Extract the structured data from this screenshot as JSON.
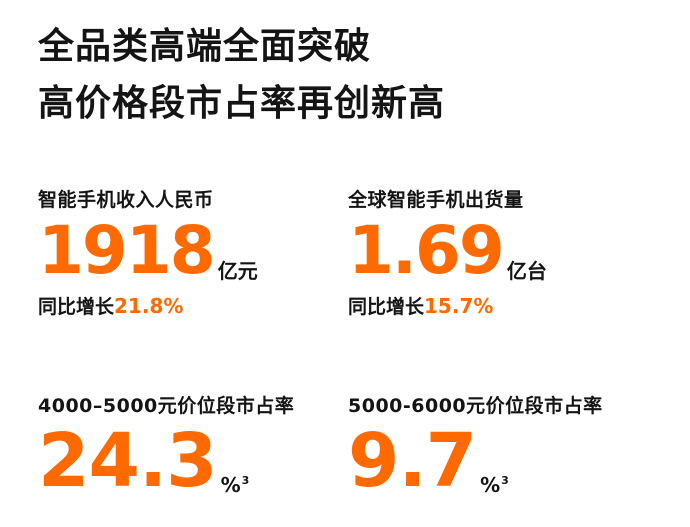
{
  "headline": {
    "line1": "全品类高端全面突破",
    "line2": "高价格段市占率再创新高"
  },
  "stats": {
    "revenue": {
      "label": "智能手机收入人民币",
      "value": "1918",
      "unit": "亿元",
      "growth_prefix": "同比增长",
      "growth_value": "21.8%"
    },
    "shipment": {
      "label": "全球智能手机出货量",
      "value": "1.69",
      "unit": "亿台",
      "growth_prefix": "同比增长",
      "growth_value": "15.7%"
    },
    "share_4000": {
      "label": "4000–5000元价位段市占率",
      "value": "24.3",
      "unit": "%",
      "footnote": "3"
    },
    "share_5000": {
      "label": "5000-6000元价位段市占率",
      "value": "9.7",
      "unit": "%",
      "footnote": "3"
    }
  },
  "colors": {
    "accent": "#ff6a00",
    "text": "#141414",
    "background": "#ffffff"
  }
}
